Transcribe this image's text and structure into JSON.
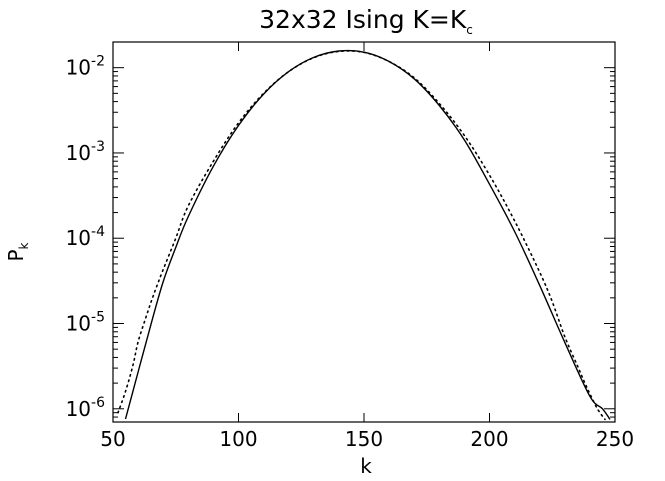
{
  "chart_data": {
    "type": "line",
    "title": "32x32 Ising K=K",
    "title_subscript": "c",
    "xlabel": "k",
    "ylabel": "P",
    "ylabel_subscript": "k",
    "xlim": [
      50,
      250
    ],
    "ylim": [
      7e-07,
      0.02
    ],
    "yscale": "log",
    "grid": false,
    "x_ticks": [
      50,
      100,
      150,
      200,
      250
    ],
    "x_tick_labels": [
      "50",
      "100",
      "150",
      "200",
      "250"
    ],
    "y_ticks": [
      {
        "value": 0.01,
        "base": "10",
        "exp": "-2"
      },
      {
        "value": 0.001,
        "base": "10",
        "exp": "-3"
      },
      {
        "value": 0.0001,
        "base": "10",
        "exp": "-4"
      },
      {
        "value": 1e-05,
        "base": "10",
        "exp": "-5"
      },
      {
        "value": 1e-06,
        "base": "10",
        "exp": "-6"
      }
    ],
    "series": [
      {
        "style": "solid",
        "color": "#000000",
        "x": [
          55,
          60,
          65,
          70,
          75,
          80,
          90,
          100,
          110,
          120,
          130,
          140,
          150,
          160,
          170,
          180,
          190,
          200,
          210,
          220,
          230,
          240,
          245,
          248
        ],
        "y": [
          7.6e-07,
          2.7e-06,
          9.5e-06,
          3.1e-05,
          7.8e-05,
          0.00018,
          0.0007,
          0.0021,
          0.0049,
          0.009,
          0.0132,
          0.0157,
          0.0152,
          0.0118,
          0.0074,
          0.0036,
          0.00142,
          0.00043,
          0.00012,
          2.8e-05,
          6e-06,
          1.4e-06,
          1e-06,
          7.5e-07
        ]
      },
      {
        "style": "dotted",
        "color": "#000000",
        "x": [
          52,
          55,
          58,
          60,
          63,
          66,
          70,
          75,
          80,
          90,
          100,
          110,
          120,
          130,
          140,
          150,
          160,
          170,
          180,
          190,
          200,
          210,
          220,
          225,
          230,
          235,
          238,
          240,
          243,
          246
        ],
        "y": [
          9e-07,
          1.6e-06,
          3.3e-06,
          6.1e-06,
          1.15e-05,
          2.1e-05,
          4.3e-05,
          0.0001,
          0.00024,
          0.0008,
          0.00225,
          0.005,
          0.009,
          0.0131,
          0.0155,
          0.0151,
          0.0118,
          0.0076,
          0.0038,
          0.0016,
          0.00055,
          0.00016,
          4e-05,
          1.8e-05,
          7e-06,
          3.2e-06,
          2e-06,
          1.5e-06,
          1e-06,
          7.5e-07
        ]
      }
    ]
  }
}
